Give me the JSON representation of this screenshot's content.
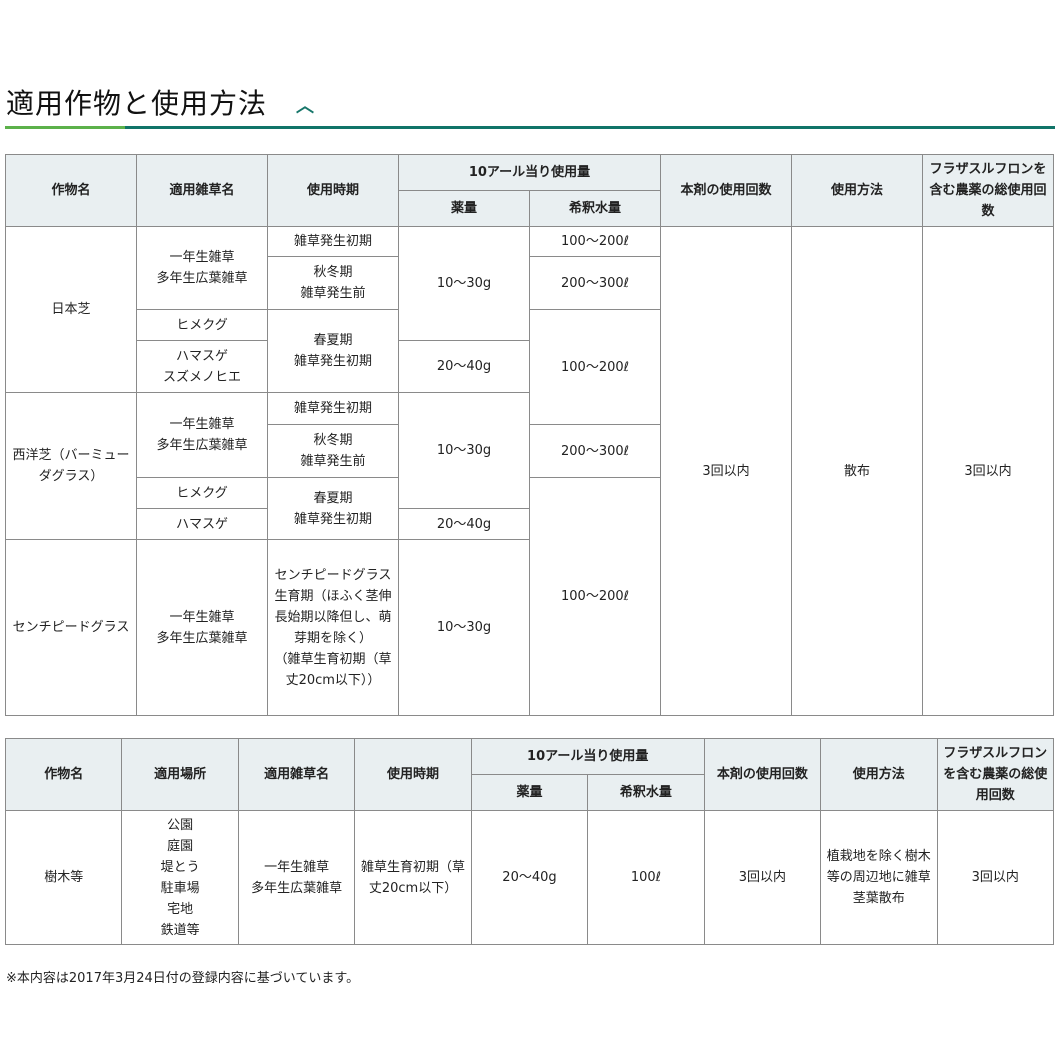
{
  "section": {
    "title": "適用作物と使用方法",
    "toggle_icon": "chevron-up-icon",
    "accent_colors": [
      "#5cb14a",
      "#107468"
    ]
  },
  "table1": {
    "headers": {
      "crop": "作物名",
      "weed": "適用雑草名",
      "timing": "使用時期",
      "per10a": "10アール当り使用量",
      "amount": "薬量",
      "water": "希釈水量",
      "count": "本剤の使用回数",
      "method": "使用方法",
      "total": "フラザスルフロンを含む農薬の総使用回数"
    },
    "crops": [
      "日本芝",
      "西洋芝（バーミューダグラス）",
      "センチピードグラス"
    ],
    "weeds": [
      "一年生雑草\n多年生広葉雑草",
      "ヒメクグ",
      "ハマスゲ\nスズメノヒエ",
      "ハマスゲ"
    ],
    "timings": [
      "雑草発生初期",
      "秋冬期\n雑草発生前",
      "春夏期\n雑草発生初期",
      "センチピードグラス生育期（ほふく茎伸長始期以降但し、萌芽期を除く）\n（雑草生育初期（草丈20cm以下））"
    ],
    "amounts": [
      "10～30g",
      "20～40g"
    ],
    "waters": [
      "100～200ℓ",
      "200～300ℓ"
    ],
    "count": "3回以内",
    "method": "散布",
    "total": "3回以内"
  },
  "table2": {
    "headers": {
      "crop": "作物名",
      "place": "適用場所",
      "weed": "適用雑草名",
      "timing": "使用時期",
      "per10a": "10アール当り使用量",
      "amount": "薬量",
      "water": "希釈水量",
      "count": "本剤の使用回数",
      "method": "使用方法",
      "total": "フラザスルフロンを含む農薬の総使用回数"
    },
    "crop": "樹木等",
    "place": "公園\n庭園\n堤とう\n駐車場\n宅地\n鉄道等",
    "weed": "一年生雑草\n多年生広葉雑草",
    "timing": "雑草生育初期（草丈20cm以下）",
    "amount": "20～40g",
    "water": "100ℓ",
    "count": "3回以内",
    "method": "植栽地を除く樹木等の周辺地に雑草茎葉散布",
    "total": "3回以内"
  },
  "note": "※本内容は2017年3月24日付の登録内容に基づいています。"
}
